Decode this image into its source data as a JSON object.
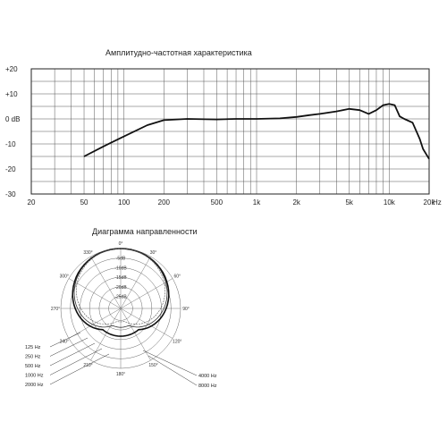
{
  "chart_data": [
    {
      "type": "line",
      "title": "Амплитудно-частотная характеристика",
      "x_scale": "log",
      "xlim": [
        20,
        20000
      ],
      "ylim": [
        -30,
        20
      ],
      "x_tick_values": [
        20,
        50,
        100,
        200,
        500,
        1000,
        2000,
        5000,
        10000,
        20000
      ],
      "x_tick_labels": [
        "20",
        "50",
        "100",
        "200",
        "500",
        "1k",
        "2k",
        "5k",
        "10k",
        "20k"
      ],
      "x_unit_label": "Hz",
      "y_tick_values": [
        20,
        10,
        0,
        -10,
        -20,
        -30
      ],
      "y_tick_labels": [
        "+20",
        "+10",
        "0 dB",
        "-10",
        "-20",
        "-30"
      ],
      "grid": true,
      "series": [
        {
          "x": [
            50,
            70,
            100,
            150,
            200,
            300,
            500,
            700,
            1000,
            1500,
            2000,
            2500,
            3000,
            4000,
            5000,
            6000,
            7000,
            8000,
            9000,
            10000,
            11000,
            12000,
            13000,
            15000,
            17000,
            18000,
            20000
          ],
          "y": [
            -15,
            -11,
            -7,
            -2.5,
            -0.5,
            0,
            -0.2,
            0,
            0,
            0.2,
            0.8,
            1.5,
            2,
            3,
            4,
            3.5,
            2,
            3.5,
            5.5,
            6,
            5.5,
            1,
            0,
            -1.5,
            -8,
            -12,
            -16
          ]
        }
      ]
    },
    {
      "type": "polar",
      "title": "Диаграмма направленности",
      "angle_labels": [
        "0°",
        "30°",
        "60°",
        "90°",
        "120°",
        "150°",
        "180°",
        "210°",
        "240°",
        "270°",
        "300°",
        "330°"
      ],
      "ring_labels": [
        "-5dB",
        "-10dB",
        "-15dB",
        "-20dB",
        "-25dB"
      ],
      "legend_left": [
        "125 Hz",
        "250 Hz",
        "500 Hz",
        "1000 Hz",
        "2000 Hz"
      ],
      "legend_right": [
        "4000 Hz",
        "8000 Hz"
      ]
    }
  ]
}
